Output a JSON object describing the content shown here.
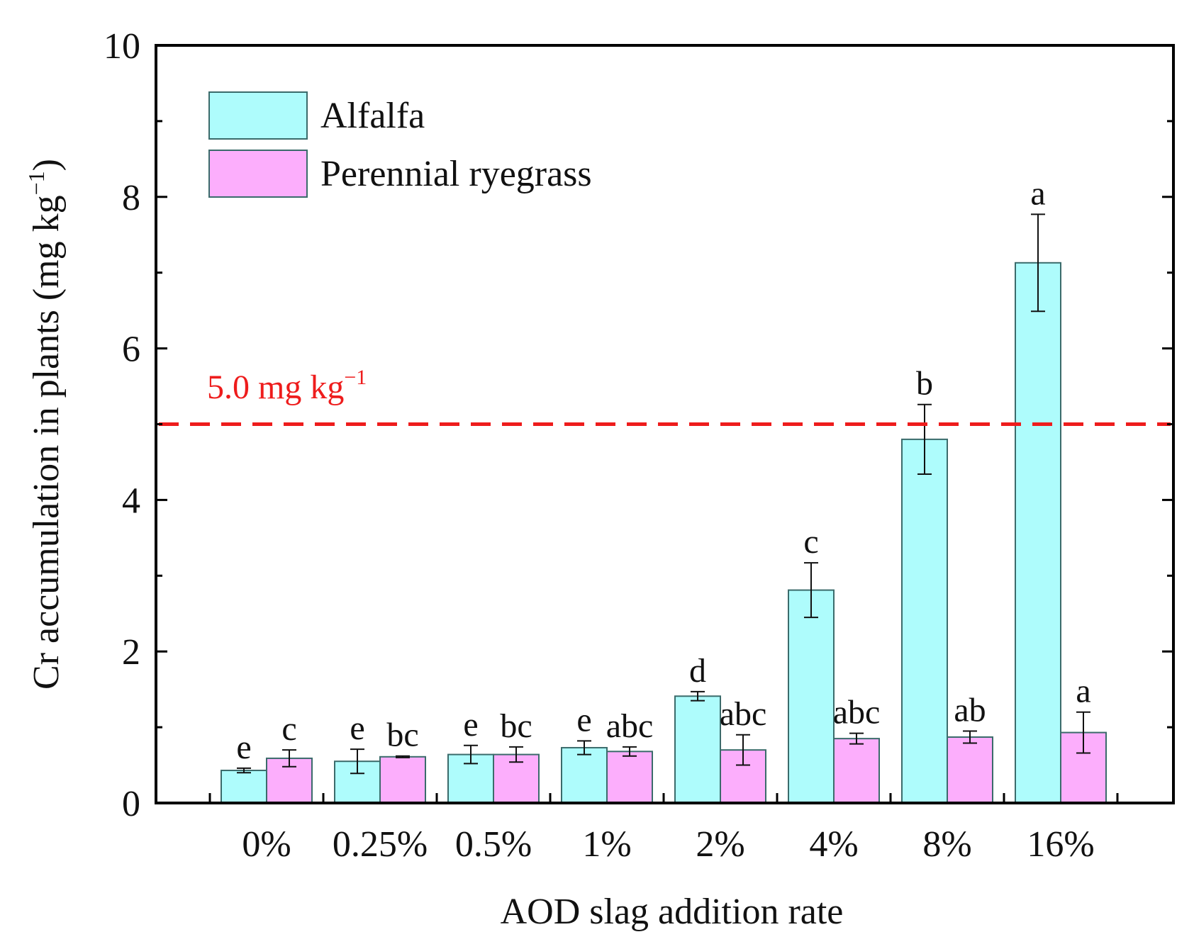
{
  "chart_data": {
    "type": "bar",
    "xlabel": "AOD slag addition rate",
    "ylabel": "Cr accumulation in plants (mg kg",
    "ylabel_sup": "−1",
    "ylabel_close": ")",
    "ylim": [
      0,
      10
    ],
    "yticks": [
      "0",
      "2",
      "4",
      "6",
      "8",
      "10"
    ],
    "categories": [
      "0%",
      "0.25%",
      "0.5%",
      "1%",
      "2%",
      "4%",
      "8%",
      "16%"
    ],
    "series": [
      {
        "name": "Alfalfa",
        "color": "#aefcfc",
        "values": [
          0.43,
          0.55,
          0.64,
          0.73,
          1.41,
          2.81,
          4.8,
          7.13
        ],
        "errors": [
          0.03,
          0.16,
          0.12,
          0.09,
          0.06,
          0.36,
          0.46,
          0.64
        ],
        "letters": [
          "e",
          "e",
          "e",
          "e",
          "d",
          "c",
          "b",
          "a"
        ]
      },
      {
        "name": "Perennial ryegrass",
        "color": "#fcaefc",
        "values": [
          0.59,
          0.61,
          0.64,
          0.68,
          0.7,
          0.85,
          0.87,
          0.93
        ],
        "errors": [
          0.11,
          0.01,
          0.1,
          0.06,
          0.2,
          0.07,
          0.08,
          0.27
        ],
        "letters": [
          "c",
          "bc",
          "bc",
          "abc",
          "abc",
          "abc",
          "ab",
          "a"
        ]
      }
    ],
    "reference_line": {
      "value": 5.0,
      "label": "5.0 mg kg",
      "label_sup": "−1",
      "color": "#ee1c1c",
      "style": "dashed"
    },
    "legend_position": "top-left",
    "grid": false
  }
}
